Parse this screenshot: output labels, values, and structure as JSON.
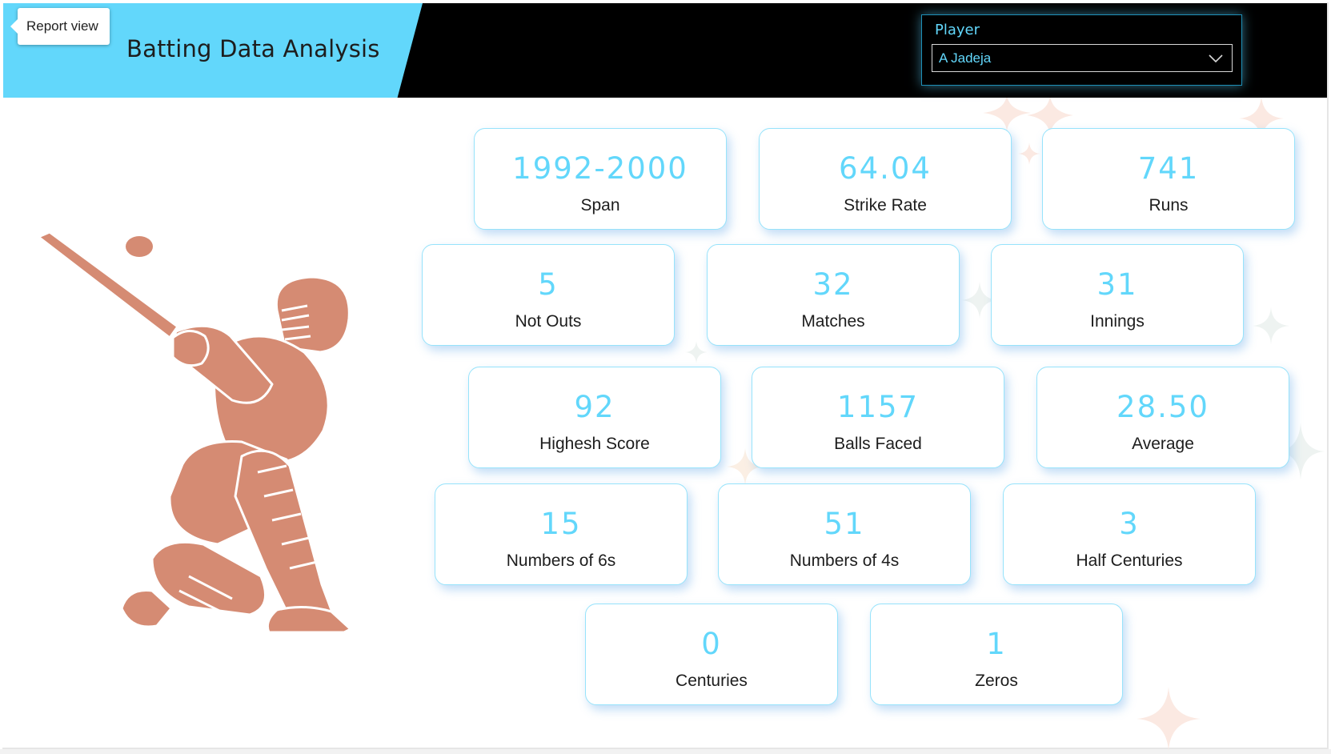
{
  "tooltip": {
    "label": "Report view"
  },
  "header": {
    "title": "Batting Data Analysis"
  },
  "slicer": {
    "label": "Player",
    "value": "A Jadeja",
    "icon": "chevron-down-icon"
  },
  "colors": {
    "accent": "#62d7fb",
    "header_bg": "#000000",
    "figure": "#d58b73",
    "card_border": "#97e3fb"
  },
  "stats": [
    {
      "value": "1992-2000",
      "label": "Span"
    },
    {
      "value": "64.04",
      "label": "Strike Rate"
    },
    {
      "value": "741",
      "label": "Runs"
    },
    {
      "value": "5",
      "label": "Not Outs"
    },
    {
      "value": "32",
      "label": "Matches"
    },
    {
      "value": "31",
      "label": "Innings"
    },
    {
      "value": "92",
      "label": "Highesh Score"
    },
    {
      "value": "1157",
      "label": "Balls Faced"
    },
    {
      "value": "28.50",
      "label": "Average"
    },
    {
      "value": "15",
      "label": "Numbers of 6s"
    },
    {
      "value": "51",
      "label": "Numbers of 4s"
    },
    {
      "value": "3",
      "label": "Half Centuries"
    },
    {
      "value": "0",
      "label": "Centuries"
    },
    {
      "value": "1",
      "label": "Zeros"
    }
  ]
}
